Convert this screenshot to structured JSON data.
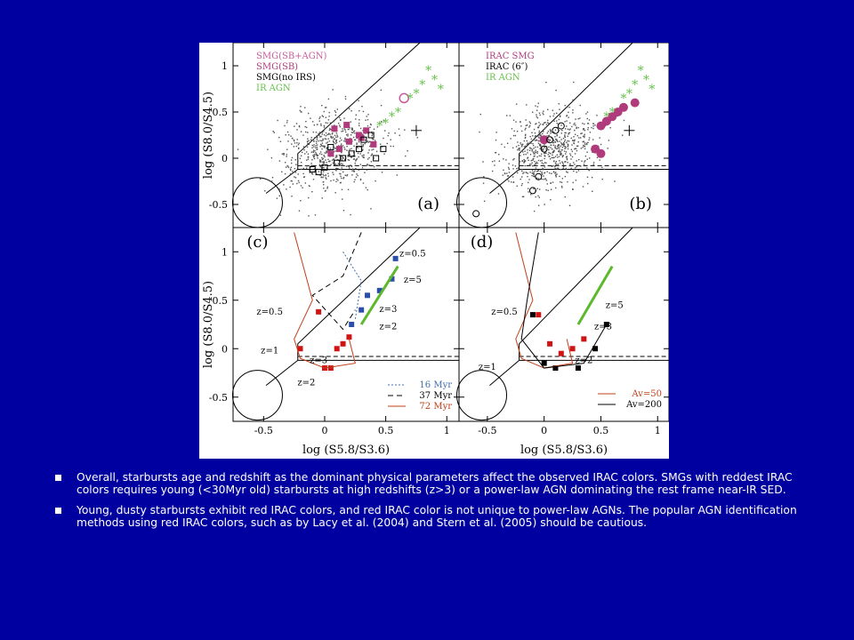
{
  "colors": {
    "background": "#0000a0",
    "bullet_text": "#ffffff",
    "smg_sb_agn": "#c85a9a",
    "smg_sb": "#b03a7c",
    "irac_agn": "#66c04a",
    "model_16": "#4070b0",
    "model_72": "#c0401a",
    "green_line": "#5cb82c",
    "blue_square": "#2b4fa8",
    "red_square": "#d01414"
  },
  "bullets": [
    "Overall, starbursts age and redshift as the dominant physical parameters affect the observed IRAC colors. SMGs with reddest IRAC colors requires young (<30Myr old) starbursts at high redshifts (z>3) or a power-law AGN dominating the rest frame near-IR SED.",
    " Young, dusty starbursts exhibit red IRAC colors, and red IRAC color is not unique to power-law AGNs. The popular AGN identification methods using red IRAC colors, such as by Lacy et al. (2004) and Stern et al. (2005) should be cautious."
  ],
  "chart_data": [
    {
      "type": "scatter",
      "panel": "(a)",
      "xlim": [
        -0.75,
        1.1
      ],
      "ylim": [
        -0.75,
        1.25
      ],
      "xticks": [],
      "yticks": [
        "-0.5",
        "0",
        "0.5",
        "1"
      ],
      "ylabel": "log (S8.0/S4.5)",
      "legend": [
        "SMG(SB+AGN)",
        "SMG(SB)",
        "SMG(no IRS)",
        "IR AGN"
      ],
      "series": [
        {
          "name": "SMG(SB+AGN)",
          "marker": "open-pentagon",
          "x": [
            0.65
          ],
          "y": [
            0.65
          ]
        },
        {
          "name": "SMG(SB)",
          "marker": "filled-square",
          "x": [
            0.05,
            0.12,
            0.2,
            0.28,
            0.34,
            0.4,
            0.08,
            0.18,
            0.3
          ],
          "y": [
            0.05,
            0.1,
            0.18,
            0.25,
            0.3,
            0.15,
            0.32,
            0.36,
            0.22
          ]
        },
        {
          "name": "SMG(no IRS)",
          "marker": "open-square",
          "x": [
            -0.05,
            0.0,
            0.1,
            0.15,
            0.22,
            0.28,
            0.32,
            0.38,
            0.42,
            0.48,
            -0.1,
            0.05
          ],
          "y": [
            -0.15,
            -0.1,
            -0.05,
            0.0,
            0.05,
            0.1,
            0.2,
            0.25,
            0.0,
            0.1,
            -0.12,
            0.12
          ],
          "note": ""
        },
        {
          "name": "IR AGN",
          "marker": "asterisk",
          "x": [
            0.85,
            0.9,
            0.95,
            0.55,
            0.6,
            0.7,
            0.75,
            0.8,
            0.45,
            0.5
          ],
          "y": [
            0.95,
            0.85,
            0.75,
            0.45,
            0.5,
            0.65,
            0.7,
            0.8,
            0.35,
            0.38
          ]
        }
      ]
    },
    {
      "type": "scatter",
      "panel": "(b)",
      "xlim": [
        -0.75,
        1.1
      ],
      "ylim": [
        -0.75,
        1.25
      ],
      "legend": [
        "IRAC SMG",
        "IRAC (6″)",
        "IR AGN"
      ],
      "series": [
        {
          "name": "IRAC SMG",
          "marker": "filled-circle",
          "x": [
            0.5,
            0.55,
            0.6,
            0.65,
            0.7,
            0.8,
            0.45,
            0.5,
            0.0
          ],
          "y": [
            0.35,
            0.4,
            0.45,
            0.5,
            0.55,
            0.6,
            0.1,
            0.05,
            0.2
          ]
        },
        {
          "name": "IRAC (6″)",
          "marker": "open-circle",
          "x": [
            0.0,
            0.05,
            -0.05,
            0.1,
            0.15,
            -0.1,
            -0.6
          ],
          "y": [
            0.1,
            0.2,
            -0.2,
            0.3,
            0.35,
            -0.35,
            -0.6
          ]
        },
        {
          "name": "IR AGN",
          "marker": "asterisk",
          "x": [
            0.85,
            0.9,
            0.95,
            0.55,
            0.6,
            0.7,
            0.75,
            0.8
          ],
          "y": [
            0.95,
            0.85,
            0.75,
            0.45,
            0.5,
            0.65,
            0.7,
            0.8
          ]
        }
      ]
    },
    {
      "type": "line",
      "panel": "(c)",
      "xlim": [
        -0.75,
        1.1
      ],
      "ylim": [
        -0.75,
        1.25
      ],
      "xticks": [
        "-0.5",
        "0",
        "0.5",
        "1"
      ],
      "yticks": [
        "-0.5",
        "0",
        "0.5",
        "1"
      ],
      "xlabel": "log (S5.8/S3.6)",
      "ylabel": "log (S8.0/S4.5)",
      "legend": [
        "16 Myr",
        "37 Myr",
        "72 Myr"
      ],
      "annotations": [
        "z=0.5",
        "z=5",
        "z=3",
        "z=2",
        "z=0.5",
        "z=1",
        "z=3",
        "z=2"
      ],
      "series": [
        {
          "name": "blue squares",
          "x": [
            0.22,
            0.3,
            0.35,
            0.45,
            0.55,
            0.58
          ],
          "y": [
            0.25,
            0.4,
            0.55,
            0.6,
            0.72,
            0.93
          ]
        },
        {
          "name": "red squares",
          "x": [
            -0.05,
            -0.2,
            0.0,
            0.05,
            0.1,
            0.15,
            0.2
          ],
          "y": [
            0.38,
            0.0,
            -0.2,
            -0.2,
            0.0,
            0.05,
            0.12
          ]
        }
      ]
    },
    {
      "type": "line",
      "panel": "(d)",
      "xlim": [
        -0.75,
        1.1
      ],
      "ylim": [
        -0.75,
        1.25
      ],
      "xticks": [
        "-0.5",
        "0",
        "0.5",
        "1"
      ],
      "xlabel": "log (S5.8/S3.6)",
      "legend": [
        "Av=50",
        "Av=200"
      ],
      "annotations": [
        "z=0.5",
        "z=5",
        "z=3",
        "z=1",
        "z=2"
      ],
      "series": [
        {
          "name": "black squares",
          "x": [
            -0.1,
            0.1,
            0.3,
            0.45,
            0.55,
            0.0
          ],
          "y": [
            0.35,
            -0.2,
            -0.2,
            0.0,
            0.25,
            -0.15
          ]
        },
        {
          "name": "red squares",
          "x": [
            -0.05,
            0.05,
            0.15,
            0.25,
            0.35
          ],
          "y": [
            0.35,
            0.05,
            -0.05,
            0.0,
            0.1
          ]
        }
      ]
    }
  ]
}
